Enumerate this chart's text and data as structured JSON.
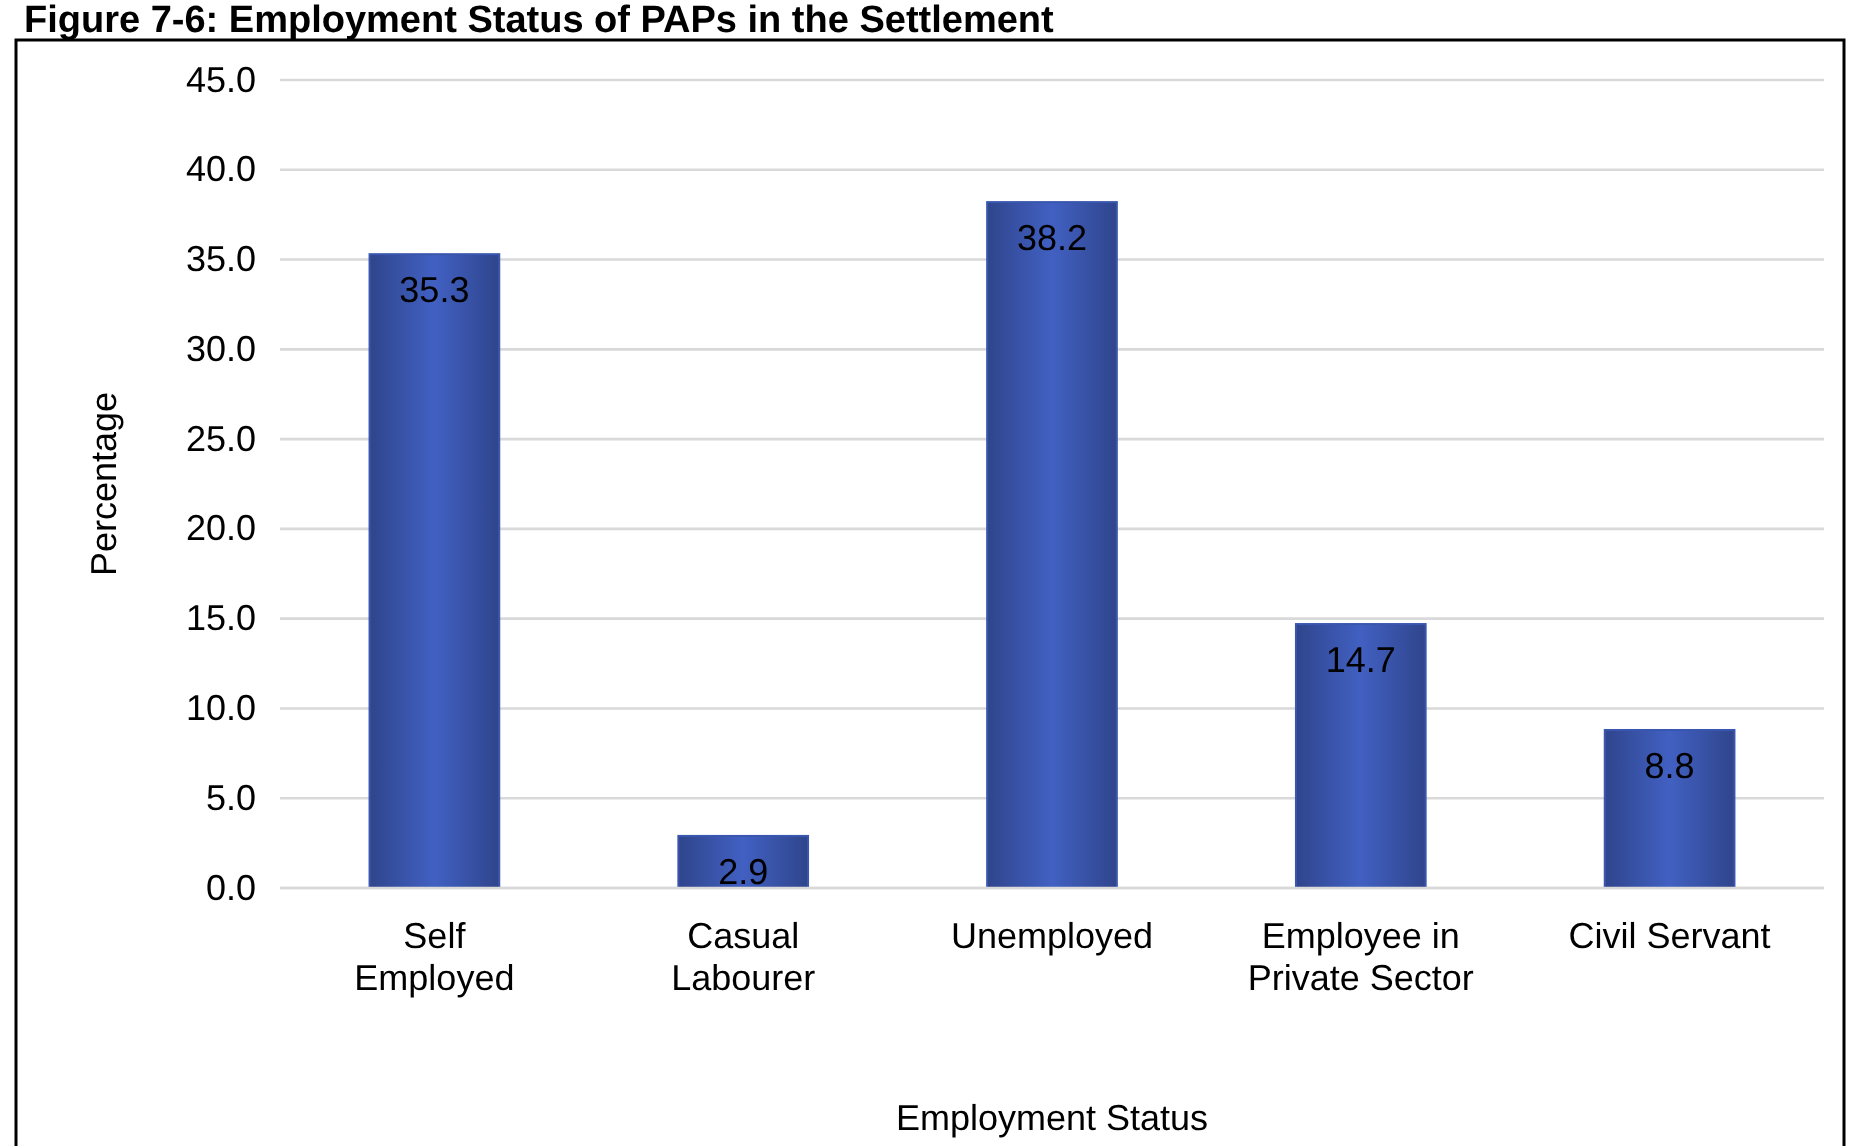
{
  "chart_data": {
    "type": "bar",
    "title": "Figure 7-6: Employment Status of PAPs in the Settlement",
    "xlabel": "Employment Status",
    "ylabel": "Percentage",
    "categories": [
      "Self Employed",
      "Casual Labourer",
      "Unemployed",
      "Employee in Private Sector",
      "Civil Servant"
    ],
    "values": [
      35.3,
      2.9,
      38.2,
      14.7,
      8.8
    ],
    "color": "#3a56ae",
    "ylim": [
      0,
      45
    ],
    "yticks": [
      {
        "value": 0,
        "label": "0.0"
      },
      {
        "value": 5,
        "label": "5.0"
      },
      {
        "value": 10,
        "label": "10.0"
      },
      {
        "value": 15,
        "label": "15.0"
      },
      {
        "value": 20,
        "label": "20.0"
      },
      {
        "value": 25,
        "label": "25.0"
      },
      {
        "value": 30,
        "label": "30.0"
      },
      {
        "value": 35,
        "label": "35.0"
      },
      {
        "value": 40,
        "label": "40.0"
      },
      {
        "value": 45,
        "label": "45.0"
      }
    ],
    "grid": "y",
    "data_labels": true
  }
}
